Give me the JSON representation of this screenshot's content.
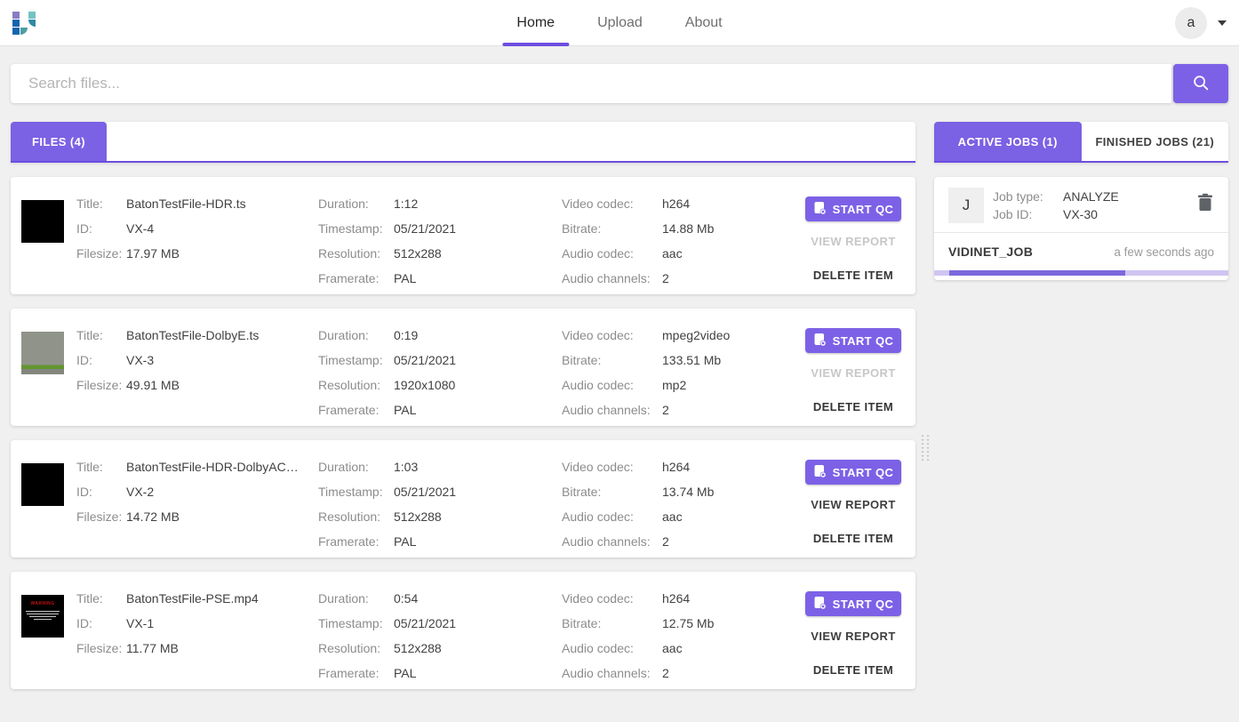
{
  "header": {
    "nav": [
      {
        "label": "Home",
        "active": true
      },
      {
        "label": "Upload",
        "active": false
      },
      {
        "label": "About",
        "active": false
      }
    ],
    "avatar_letter": "a"
  },
  "search": {
    "placeholder": "Search files..."
  },
  "labels": {
    "title": "Title:",
    "id": "ID:",
    "filesize": "Filesize:",
    "duration": "Duration:",
    "timestamp": "Timestamp:",
    "resolution": "Resolution:",
    "framerate": "Framerate:",
    "video_codec": "Video codec:",
    "bitrate": "Bitrate:",
    "audio_codec": "Audio codec:",
    "audio_channels": "Audio channels:"
  },
  "buttons": {
    "start_qc": "START QC",
    "view_report": "VIEW REPORT",
    "delete_item": "DELETE ITEM"
  },
  "files_panel": {
    "tab": "FILES (4)"
  },
  "files": [
    {
      "title": "BatonTestFile-HDR.ts",
      "id": "VX-4",
      "filesize": "17.97 MB",
      "duration": "1:12",
      "timestamp": "05/21/2021",
      "resolution": "512x288",
      "framerate": "PAL",
      "video_codec": "h264",
      "bitrate": "14.88 Mb",
      "audio_codec": "aac",
      "audio_channels": "2",
      "view_report_enabled": false,
      "thumb": "solid-black",
      "thumb_text": ""
    },
    {
      "title": "BatonTestFile-DolbyE.ts",
      "id": "VX-3",
      "filesize": "49.91 MB",
      "duration": "0:19",
      "timestamp": "05/21/2021",
      "resolution": "1920x1080",
      "framerate": "PAL",
      "video_codec": "mpeg2video",
      "bitrate": "133.51 Mb",
      "audio_codec": "mp2",
      "audio_channels": "2",
      "view_report_enabled": false,
      "thumb": "gray-green",
      "thumb_text": ""
    },
    {
      "title": "BatonTestFile-HDR-DolbyAC3…",
      "id": "VX-2",
      "filesize": "14.72 MB",
      "duration": "1:03",
      "timestamp": "05/21/2021",
      "resolution": "512x288",
      "framerate": "PAL",
      "video_codec": "h264",
      "bitrate": "13.74 Mb",
      "audio_codec": "aac",
      "audio_channels": "2",
      "view_report_enabled": true,
      "thumb": "solid-black",
      "thumb_text": ""
    },
    {
      "title": "BatonTestFile-PSE.mp4",
      "id": "VX-1",
      "filesize": "11.77 MB",
      "duration": "0:54",
      "timestamp": "05/21/2021",
      "resolution": "512x288",
      "framerate": "PAL",
      "video_codec": "h264",
      "bitrate": "12.75 Mb",
      "audio_codec": "aac",
      "audio_channels": "2",
      "view_report_enabled": true,
      "thumb": "warning",
      "thumb_text": "WARNING"
    }
  ],
  "jobs_panel": {
    "tabs": [
      {
        "label": "ACTIVE JOBS (1)",
        "active": true
      },
      {
        "label": "FINISHED JOBS (21)",
        "active": false
      }
    ],
    "job": {
      "initial": "J",
      "job_type_label": "Job type:",
      "job_type": "ANALYZE",
      "job_id_label": "Job ID:",
      "job_id": "VX-30",
      "name": "VIDINET_JOB",
      "time_ago": "a few seconds ago",
      "progress_percent": 60
    }
  },
  "colors": {
    "accent": "#7c61e6",
    "tab_underline": "#6d4de0",
    "progress_track": "#cfc5f1",
    "progress_fill": "#7b68dd"
  }
}
